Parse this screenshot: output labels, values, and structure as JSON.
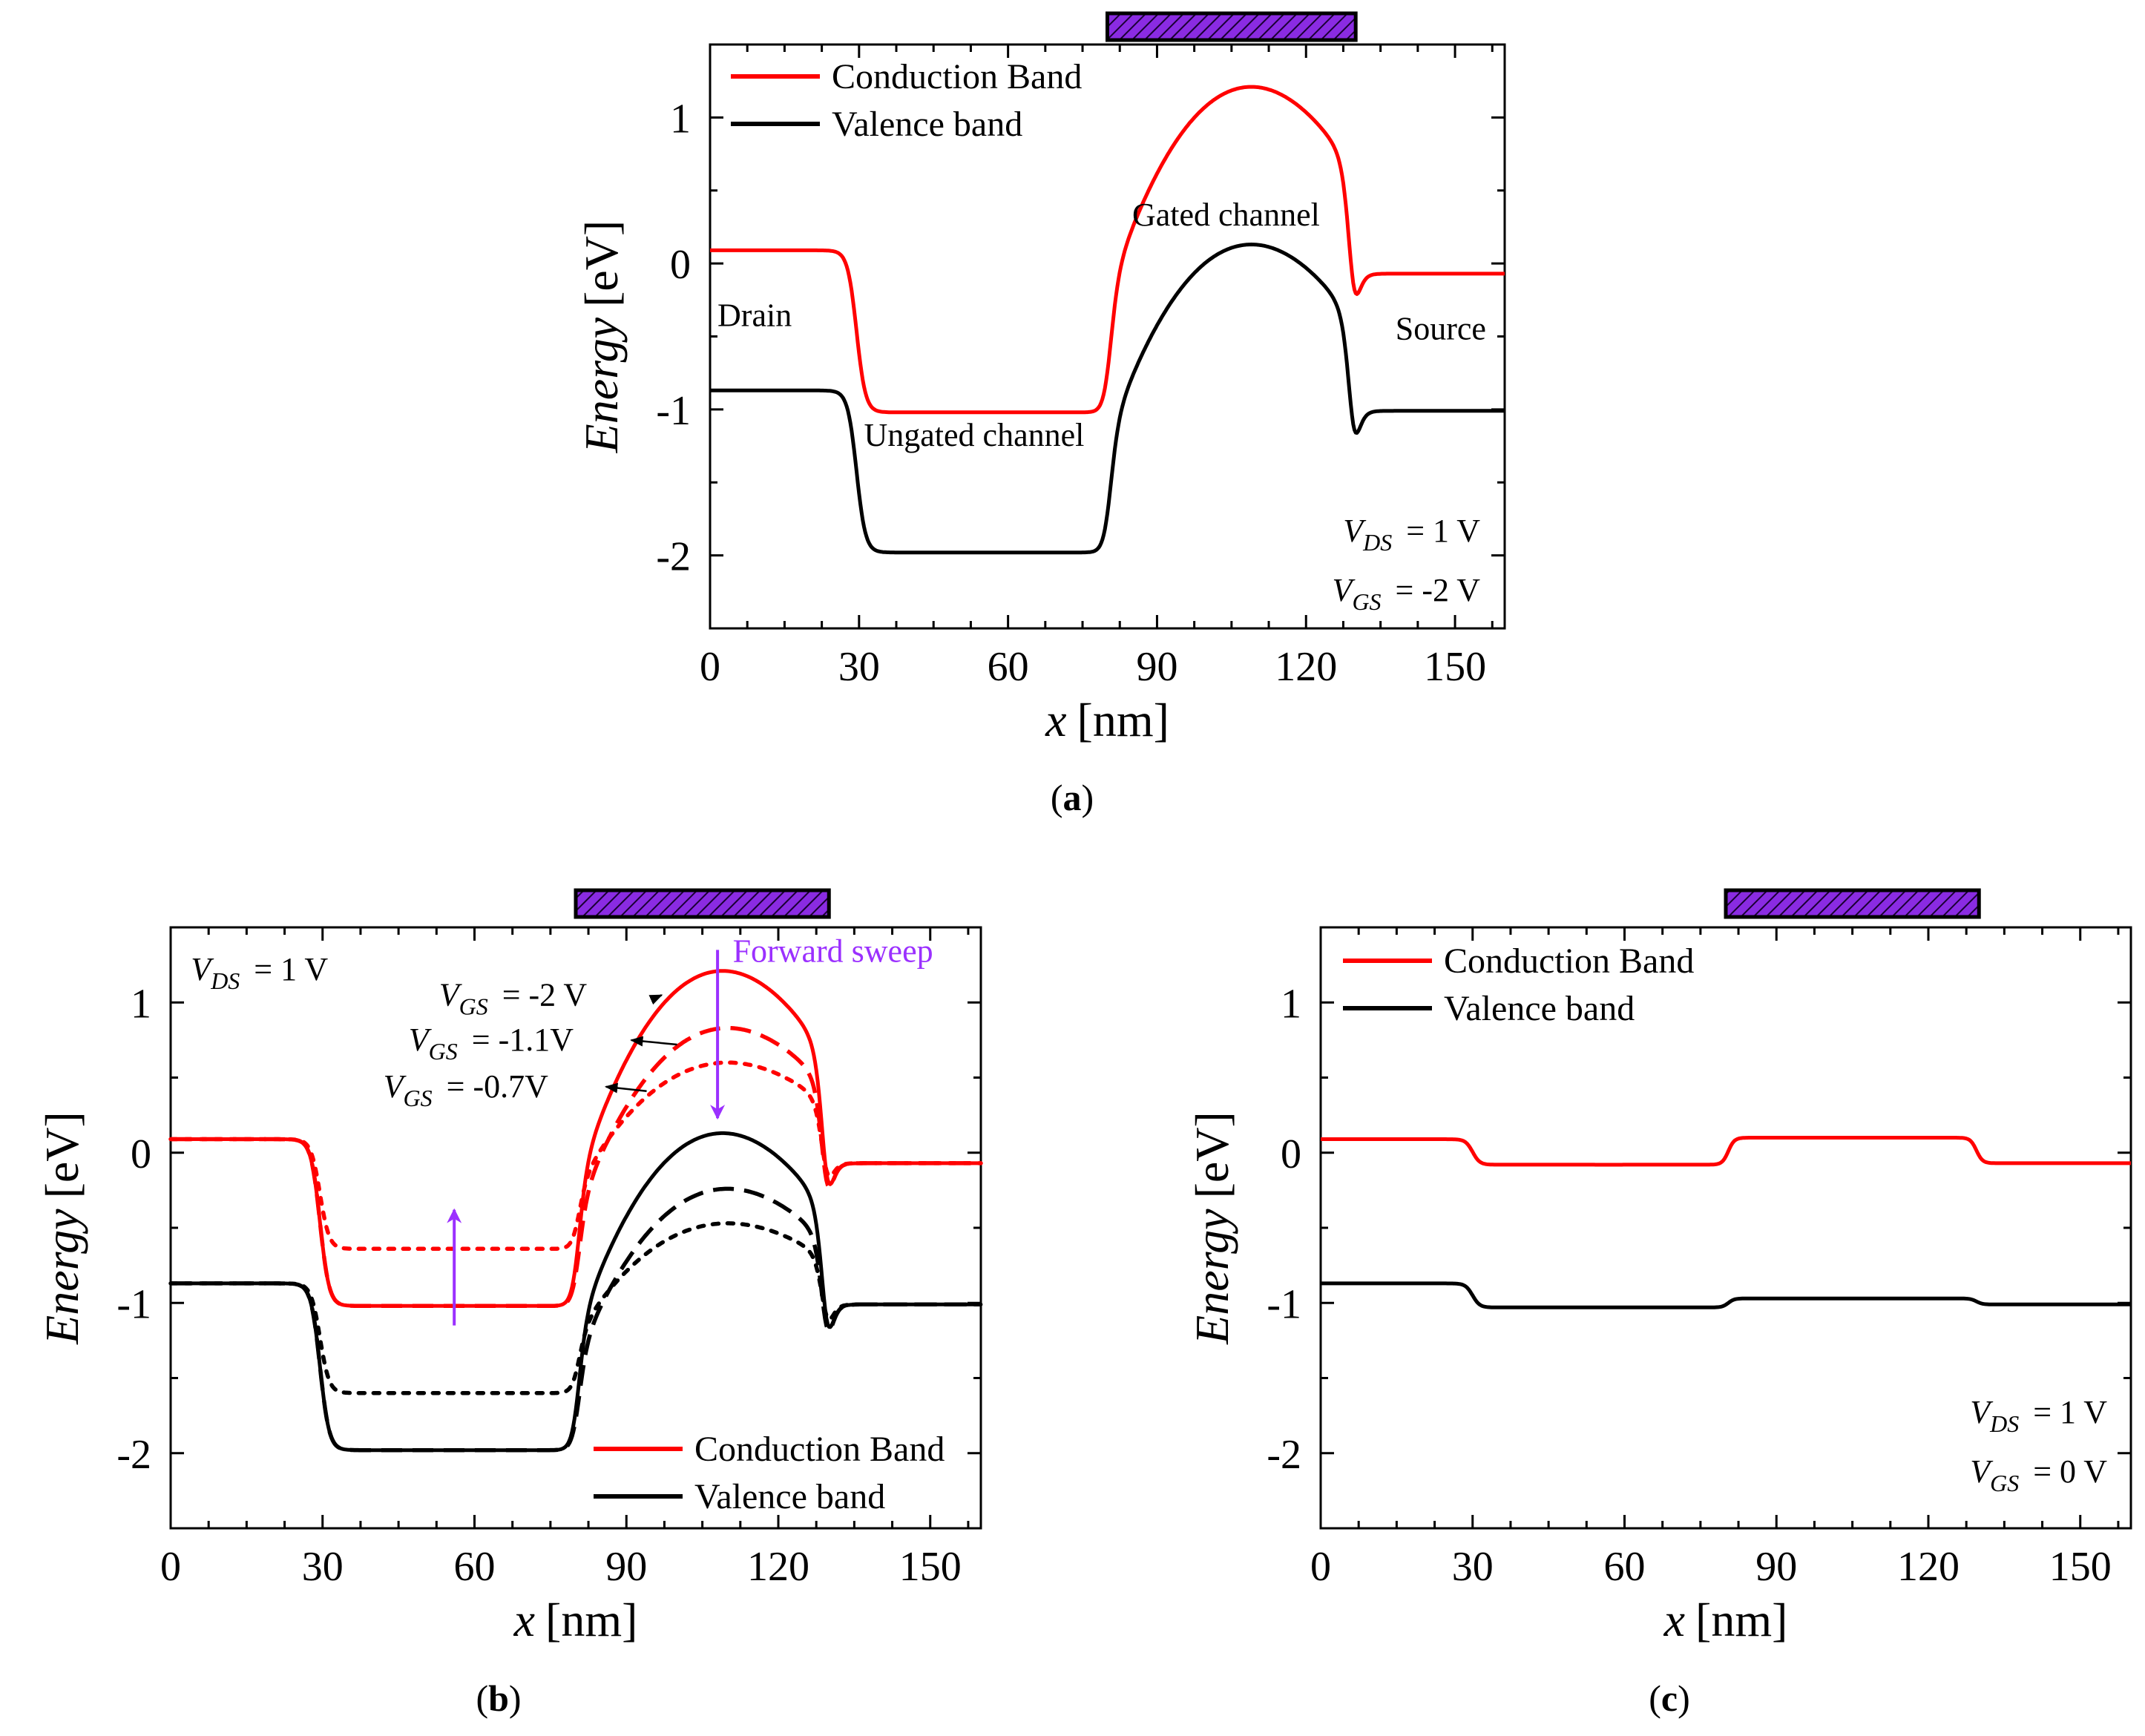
{
  "colors": {
    "conduction": "#ff0000",
    "valence": "#000000",
    "gate_fill": "#8a2be2",
    "sweep_arrow": "#9b30ff"
  },
  "chart_data": [
    {
      "id": "a",
      "type": "line",
      "caption": "(a)",
      "caption_letter": "a",
      "xlabel_italic": "x",
      "xlabel_unit": "[nm]",
      "ylabel_italic": "Energy",
      "ylabel_unit": "[eV]",
      "xlim": [
        0,
        160
      ],
      "ylim": [
        -2.5,
        1.5
      ],
      "xticks": [
        0,
        30,
        60,
        90,
        120,
        150
      ],
      "xtick_labels": [
        "0",
        "30",
        "60",
        "90",
        "120",
        "150"
      ],
      "yticks": [
        -2,
        -1,
        0,
        1
      ],
      "ytick_labels": [
        "-2",
        "-1",
        "0",
        "1"
      ],
      "gate_region": [
        80,
        130
      ],
      "legend": [
        {
          "label": "Conduction Band",
          "series": "CB"
        },
        {
          "label": "Valence band",
          "series": "VB"
        }
      ],
      "series": [
        {
          "name": "CB",
          "style": "solid",
          "band": "conduction",
          "profile": {
            "drain": 0.09,
            "ungated": -1.02,
            "gated_peak": 1.21,
            "source": -0.07,
            "peak_x": 109
          }
        },
        {
          "name": "VB",
          "style": "solid",
          "band": "valence",
          "profile": {
            "drain": -0.87,
            "ungated": -1.98,
            "gated_peak": 0.13,
            "source": -1.01,
            "peak_x": 109
          }
        }
      ],
      "annotations": [
        {
          "text": "Drain",
          "x": 1.5,
          "y": -0.43
        },
        {
          "text": "Gated channel",
          "x": 85,
          "y": 0.26
        },
        {
          "text": "Ungated channel",
          "x": 31,
          "y": -1.25
        },
        {
          "text": "Source",
          "x": 138,
          "y": -0.52
        }
      ],
      "conditions": [
        {
          "main": "V",
          "sub": "DS",
          "value": "= 1 V"
        },
        {
          "main": "V",
          "sub": "GS",
          "value": "= -2 V"
        }
      ]
    },
    {
      "id": "b",
      "type": "line",
      "caption": "(b)",
      "caption_letter": "b",
      "xlabel_italic": "x",
      "xlabel_unit": "[nm]",
      "ylabel_italic": "Energy",
      "ylabel_unit": "[eV]",
      "xlim": [
        0,
        160
      ],
      "ylim": [
        -2.5,
        1.5
      ],
      "xticks": [
        0,
        30,
        60,
        90,
        120,
        150
      ],
      "xtick_labels": [
        "0",
        "30",
        "60",
        "90",
        "120",
        "150"
      ],
      "yticks": [
        -2,
        -1,
        0,
        1
      ],
      "ytick_labels": [
        "-2",
        "-1",
        "0",
        "1"
      ],
      "gate_region": [
        80,
        130
      ],
      "legend": [
        {
          "label": "Conduction Band",
          "series": "CB_-2"
        },
        {
          "label": "Valence band",
          "series": "VB_-2"
        }
      ],
      "series": [
        {
          "name": "CB_-2",
          "style": "solid",
          "band": "conduction",
          "profile": {
            "drain": 0.09,
            "ungated": -1.02,
            "gated_peak": 1.21,
            "source": -0.07,
            "peak_x": 109
          }
        },
        {
          "name": "CB_-1.1",
          "style": "dashed",
          "band": "conduction",
          "profile": {
            "drain": 0.09,
            "ungated": -1.02,
            "gated_peak": 0.83,
            "source": -0.07,
            "peak_x": 110
          }
        },
        {
          "name": "CB_-0.7",
          "style": "dotted",
          "band": "conduction",
          "profile": {
            "drain": 0.09,
            "ungated": -0.64,
            "gated_peak": 0.6,
            "source": -0.07,
            "peak_x": 110
          }
        },
        {
          "name": "VB_-2",
          "style": "solid",
          "band": "valence",
          "profile": {
            "drain": -0.87,
            "ungated": -1.98,
            "gated_peak": 0.13,
            "source": -1.01,
            "peak_x": 109
          }
        },
        {
          "name": "VB_-1.1",
          "style": "dashed",
          "band": "valence",
          "profile": {
            "drain": -0.87,
            "ungated": -1.98,
            "gated_peak": -0.24,
            "source": -1.01,
            "peak_x": 110
          }
        },
        {
          "name": "VB_-0.7",
          "style": "dotted",
          "band": "valence",
          "profile": {
            "drain": -0.87,
            "ungated": -1.6,
            "gated_peak": -0.47,
            "source": -1.01,
            "peak_x": 110
          }
        }
      ],
      "vgs_labels": [
        {
          "main": "V",
          "sub": "GS",
          "value": "= -2 V",
          "x": 53,
          "y": 0.98,
          "arrow_to": [
            95,
            1.02
          ]
        },
        {
          "main": "V",
          "sub": "GS",
          "value": "= -1.1V",
          "x": 47,
          "y": 0.68,
          "arrow_to": [
            100,
            0.72
          ]
        },
        {
          "main": "V",
          "sub": "GS",
          "value": "= -0.7V",
          "x": 42,
          "y": 0.37,
          "arrow_to": [
            94,
            0.41
          ]
        }
      ],
      "sweep_label": "Forward sweep",
      "sweep_label_pos": {
        "x": 111,
        "y": 1.27
      },
      "sweep_arrows": [
        {
          "from": [
            108,
            1.35
          ],
          "to": [
            108,
            0.23
          ]
        },
        {
          "from": [
            56,
            -1.15
          ],
          "to": [
            56,
            -0.38
          ]
        }
      ],
      "conditions": [
        {
          "main": "V",
          "sub": "DS",
          "value": "= 1 V"
        }
      ],
      "conditions_pos": {
        "x": 4,
        "y": 1.15
      }
    },
    {
      "id": "c",
      "type": "line",
      "caption": "(c)",
      "caption_letter": "c",
      "xlabel_italic": "x",
      "xlabel_unit": "[nm]",
      "ylabel_italic": "Energy",
      "ylabel_unit": "[eV]",
      "xlim": [
        0,
        160
      ],
      "ylim": [
        -2.5,
        1.5
      ],
      "xticks": [
        0,
        30,
        60,
        90,
        120,
        150
      ],
      "xtick_labels": [
        "0",
        "30",
        "60",
        "90",
        "120",
        "150"
      ],
      "yticks": [
        -2,
        -1,
        0,
        1
      ],
      "ytick_labels": [
        "-2",
        "-1",
        "0",
        "1"
      ],
      "gate_region": [
        80,
        130
      ],
      "legend": [
        {
          "label": "Conduction Band",
          "series": "CB"
        },
        {
          "label": "Valence band",
          "series": "VB"
        }
      ],
      "series": [
        {
          "name": "CB",
          "style": "solid",
          "band": "conduction",
          "flat": {
            "drain": 0.09,
            "ungated": -0.08,
            "gated": 0.1,
            "source": -0.07
          }
        },
        {
          "name": "VB",
          "style": "solid",
          "band": "valence",
          "flat": {
            "drain": -0.87,
            "ungated": -1.03,
            "gated": -0.97,
            "source": -1.01
          }
        }
      ],
      "conditions": [
        {
          "main": "V",
          "sub": "DS",
          "value": "= 1 V"
        },
        {
          "main": "V",
          "sub": "GS",
          "value": "= 0 V"
        }
      ]
    }
  ]
}
